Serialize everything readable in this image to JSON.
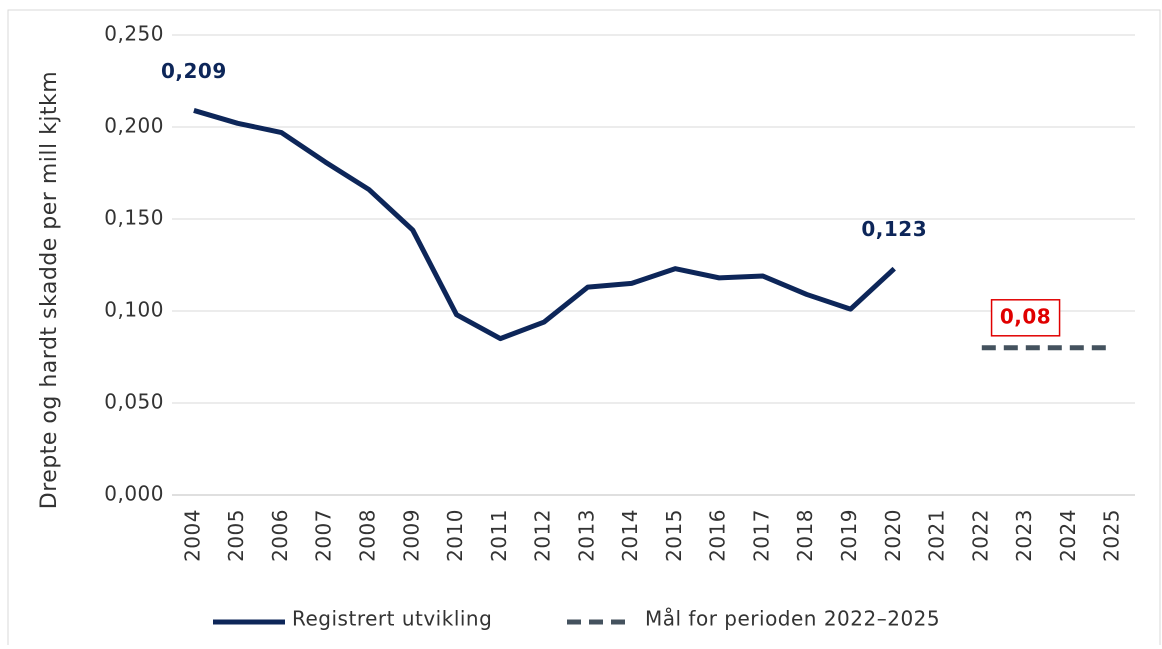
{
  "chart_data": {
    "type": "line",
    "y_label": "Drepte og hardt skadde per mill kjtkm",
    "categories": [
      "2004",
      "2005",
      "2006",
      "2007",
      "2008",
      "2009",
      "2010",
      "2011",
      "2012",
      "2013",
      "2014",
      "2015",
      "2016",
      "2017",
      "2018",
      "2019",
      "2020",
      "2021",
      "2022",
      "2023",
      "2024",
      "2025"
    ],
    "series": [
      {
        "name": "Registrert utvikling",
        "color": "#0d2659",
        "dash": false,
        "label_color": "#0d2659",
        "values": [
          0.209,
          0.202,
          0.197,
          0.181,
          0.166,
          0.144,
          0.098,
          0.085,
          0.094,
          0.113,
          0.115,
          0.123,
          0.118,
          0.119,
          0.109,
          0.101,
          0.123,
          null,
          null,
          null,
          null,
          null
        ],
        "value_labels": [
          "0,209",
          null,
          null,
          null,
          null,
          null,
          null,
          null,
          null,
          null,
          null,
          null,
          null,
          null,
          null,
          null,
          "0,123",
          null,
          null,
          null,
          null,
          null
        ]
      },
      {
        "name": "Mål for perioden 2022–2025",
        "color": "#44525e",
        "dash": true,
        "label_color": "#e00000",
        "values": [
          null,
          null,
          null,
          null,
          null,
          null,
          null,
          null,
          null,
          null,
          null,
          null,
          null,
          null,
          null,
          null,
          null,
          null,
          0.08,
          0.08,
          0.08,
          0.08
        ],
        "value_labels": [
          null,
          null,
          null,
          null,
          null,
          null,
          null,
          null,
          null,
          null,
          null,
          null,
          null,
          null,
          null,
          null,
          null,
          null,
          null,
          "0,08",
          null,
          null
        ]
      }
    ],
    "ylim": [
      0,
      0.25
    ],
    "yticks": [
      {
        "value": 0,
        "label": "0,000"
      },
      {
        "value": 0.05,
        "label": "0,050"
      },
      {
        "value": 0.1,
        "label": "0,100"
      },
      {
        "value": 0.15,
        "label": "0,150"
      },
      {
        "value": 0.2,
        "label": "0,200"
      },
      {
        "value": 0.25,
        "label": "0,250"
      }
    ],
    "grid": true,
    "legend": "bottom"
  }
}
